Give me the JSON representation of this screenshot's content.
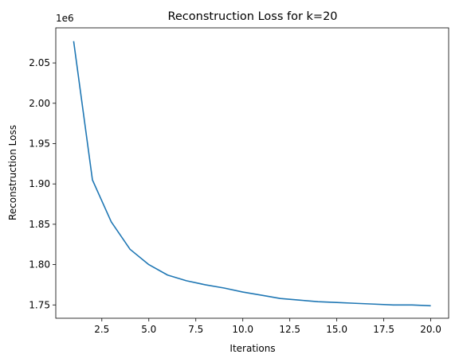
{
  "chart_data": {
    "type": "line",
    "title": "Reconstruction Loss for k=20",
    "xlabel": "Iterations",
    "ylabel": "Reconstruction Loss",
    "y_offset_label": "1e6",
    "xlim": [
      0.05,
      20.95
    ],
    "ylim": [
      1.7335,
      2.0935
    ],
    "xticks": [
      2.5,
      5.0,
      7.5,
      10.0,
      12.5,
      15.0,
      17.5,
      20.0
    ],
    "xtick_labels": [
      "2.5",
      "5.0",
      "7.5",
      "10.0",
      "12.5",
      "15.0",
      "17.5",
      "20.0"
    ],
    "yticks": [
      1.75,
      1.8,
      1.85,
      1.9,
      1.95,
      2.0,
      2.05
    ],
    "ytick_labels": [
      "1.75",
      "1.80",
      "1.85",
      "1.90",
      "1.95",
      "2.00",
      "2.05"
    ],
    "grid": false,
    "series": [
      {
        "color": "#1f77b4",
        "x": [
          1,
          2,
          3,
          4,
          5,
          6,
          7,
          8,
          9,
          10,
          11,
          12,
          13,
          14,
          15,
          16,
          17,
          18,
          19,
          20
        ],
        "values": [
          2.077,
          1.905,
          1.853,
          1.819,
          1.8,
          1.787,
          1.78,
          1.775,
          1.771,
          1.766,
          1.762,
          1.758,
          1.756,
          1.754,
          1.753,
          1.752,
          1.751,
          1.75,
          1.75,
          1.749
        ]
      }
    ]
  }
}
